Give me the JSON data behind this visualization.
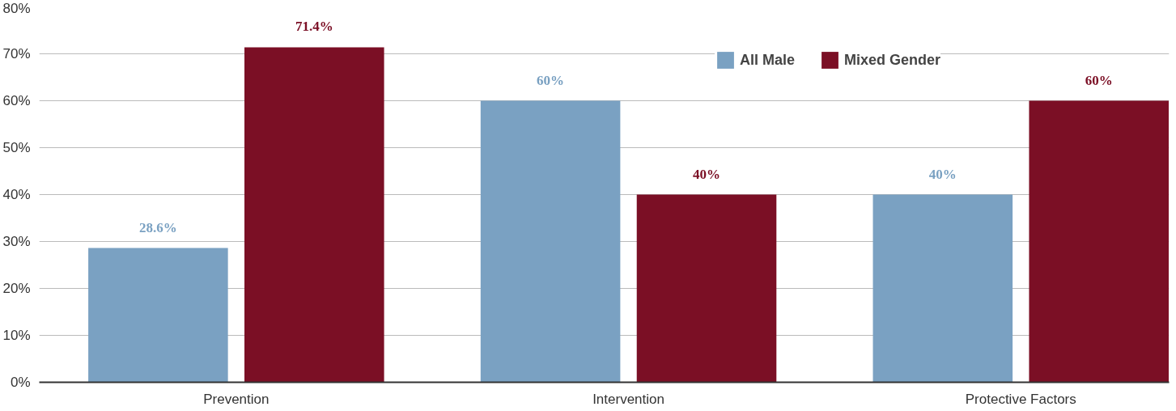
{
  "chart_data": {
    "type": "bar",
    "categories": [
      "Prevention",
      "Intervention",
      "Protective Factors"
    ],
    "series": [
      {
        "name": "All Male",
        "color": "#7aa1c2",
        "values": [
          28.6,
          60,
          40
        ],
        "value_labels": [
          "28.6%",
          "60%",
          "40%"
        ]
      },
      {
        "name": "Mixed Gender",
        "color": "#7b0f25",
        "values": [
          71.4,
          40,
          60
        ],
        "value_labels": [
          "71.4%",
          "40%",
          "60%"
        ]
      }
    ],
    "ylim": [
      0,
      80
    ],
    "yticks": [
      {
        "value": 0,
        "label": "0%"
      },
      {
        "value": 10,
        "label": "10%"
      },
      {
        "value": 20,
        "label": "20%"
      },
      {
        "value": 30,
        "label": "30%"
      },
      {
        "value": 40,
        "label": "40%"
      },
      {
        "value": 50,
        "label": "50%"
      },
      {
        "value": 60,
        "label": "60%"
      },
      {
        "value": 70,
        "label": "70%"
      },
      {
        "value": 80,
        "label": "80%"
      }
    ],
    "grid": "y",
    "legend": "top right"
  }
}
